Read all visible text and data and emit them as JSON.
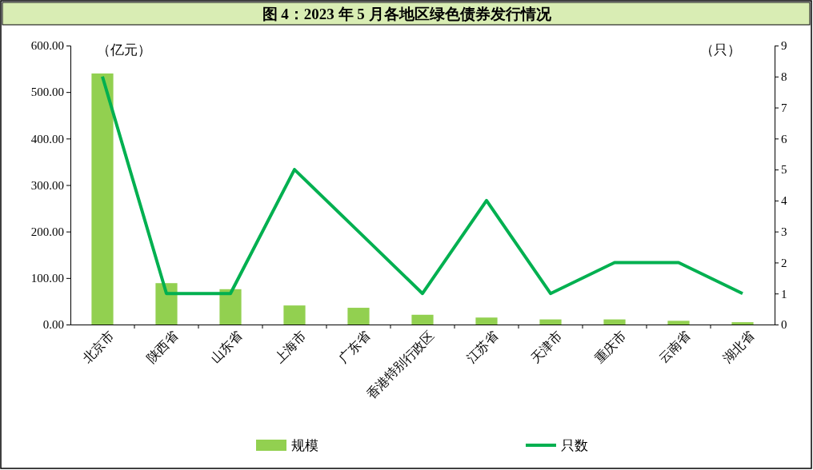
{
  "chart_data": {
    "type": "bar",
    "title": "图 4：2023 年 5 月各地区绿色债券发行情况",
    "ylabel": "（亿元）",
    "y2label": "（只）",
    "categories": [
      "北京市",
      "陕西省",
      "山东省",
      "上海市",
      "广东省",
      "香港特别行政区",
      "江苏省",
      "天津市",
      "重庆市",
      "云南省",
      "湖北省"
    ],
    "series": [
      {
        "name": "规模",
        "color": "#92d050",
        "values": [
          540,
          89,
          76,
          41,
          36,
          21,
          15,
          11,
          11,
          8,
          5
        ]
      },
      {
        "name": "只数",
        "type": "line",
        "axis": "y2",
        "color": "#00b050",
        "marker": "none",
        "values": [
          8,
          1,
          1,
          5,
          3,
          1,
          4,
          1,
          2,
          2,
          1
        ]
      }
    ],
    "ylim": [
      0,
      600
    ],
    "yticks": [
      {
        "value": 0,
        "label": "0.00"
      },
      {
        "value": 100,
        "label": "100.00"
      },
      {
        "value": 200,
        "label": "200.00"
      },
      {
        "value": 300,
        "label": "300.00"
      },
      {
        "value": 400,
        "label": "400.00"
      },
      {
        "value": 500,
        "label": "500.00"
      },
      {
        "value": 600,
        "label": "600.00"
      }
    ],
    "y2lim": [
      0,
      9
    ],
    "y2ticks": [
      0,
      1,
      2,
      3,
      4,
      5,
      6,
      7,
      8,
      9
    ],
    "grid": false,
    "legend": "bottom"
  }
}
